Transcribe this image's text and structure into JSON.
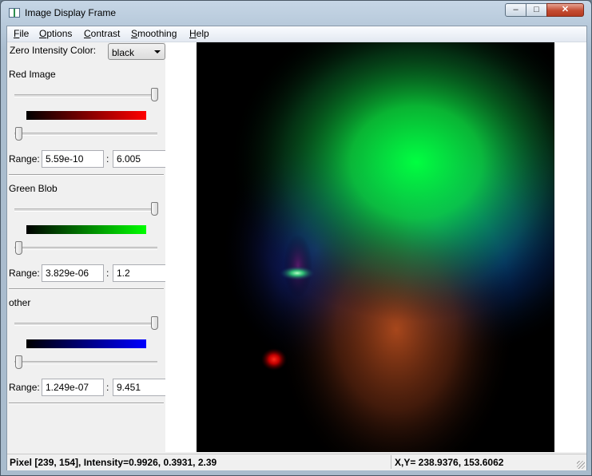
{
  "window": {
    "title": "Image Display Frame",
    "minimize": "‒",
    "maximize": "□",
    "close": "✕"
  },
  "menu": {
    "file": "File",
    "options": "Options",
    "contrast": "Contrast",
    "smoothing": "Smoothing",
    "help": "Help"
  },
  "zero_color": {
    "label": "Zero Intensity Color:",
    "value": "black"
  },
  "channels": [
    {
      "name": "Red Image",
      "color": "#ff0000",
      "range_label": "Range:",
      "range_min": "5.59e-10",
      "range_max": "6.005",
      "top_slider": 1.0,
      "bottom_slider": 0.0
    },
    {
      "name": "Green Blob",
      "color": "#00ff00",
      "range_label": "Range:",
      "range_min": "3.829e-06",
      "range_max": "1.2",
      "top_slider": 1.0,
      "bottom_slider": 0.0
    },
    {
      "name": "other",
      "color": "#0000ff",
      "range_label": "Range:",
      "range_min": "1.249e-07",
      "range_max": "9.451",
      "top_slider": 1.0,
      "bottom_slider": 0.0
    }
  ],
  "status": {
    "pixel": "Pixel [239, 154], Intensity=0.9926, 0.3931, 2.39",
    "xy": "X,Y= 238.9376, 153.6062"
  }
}
